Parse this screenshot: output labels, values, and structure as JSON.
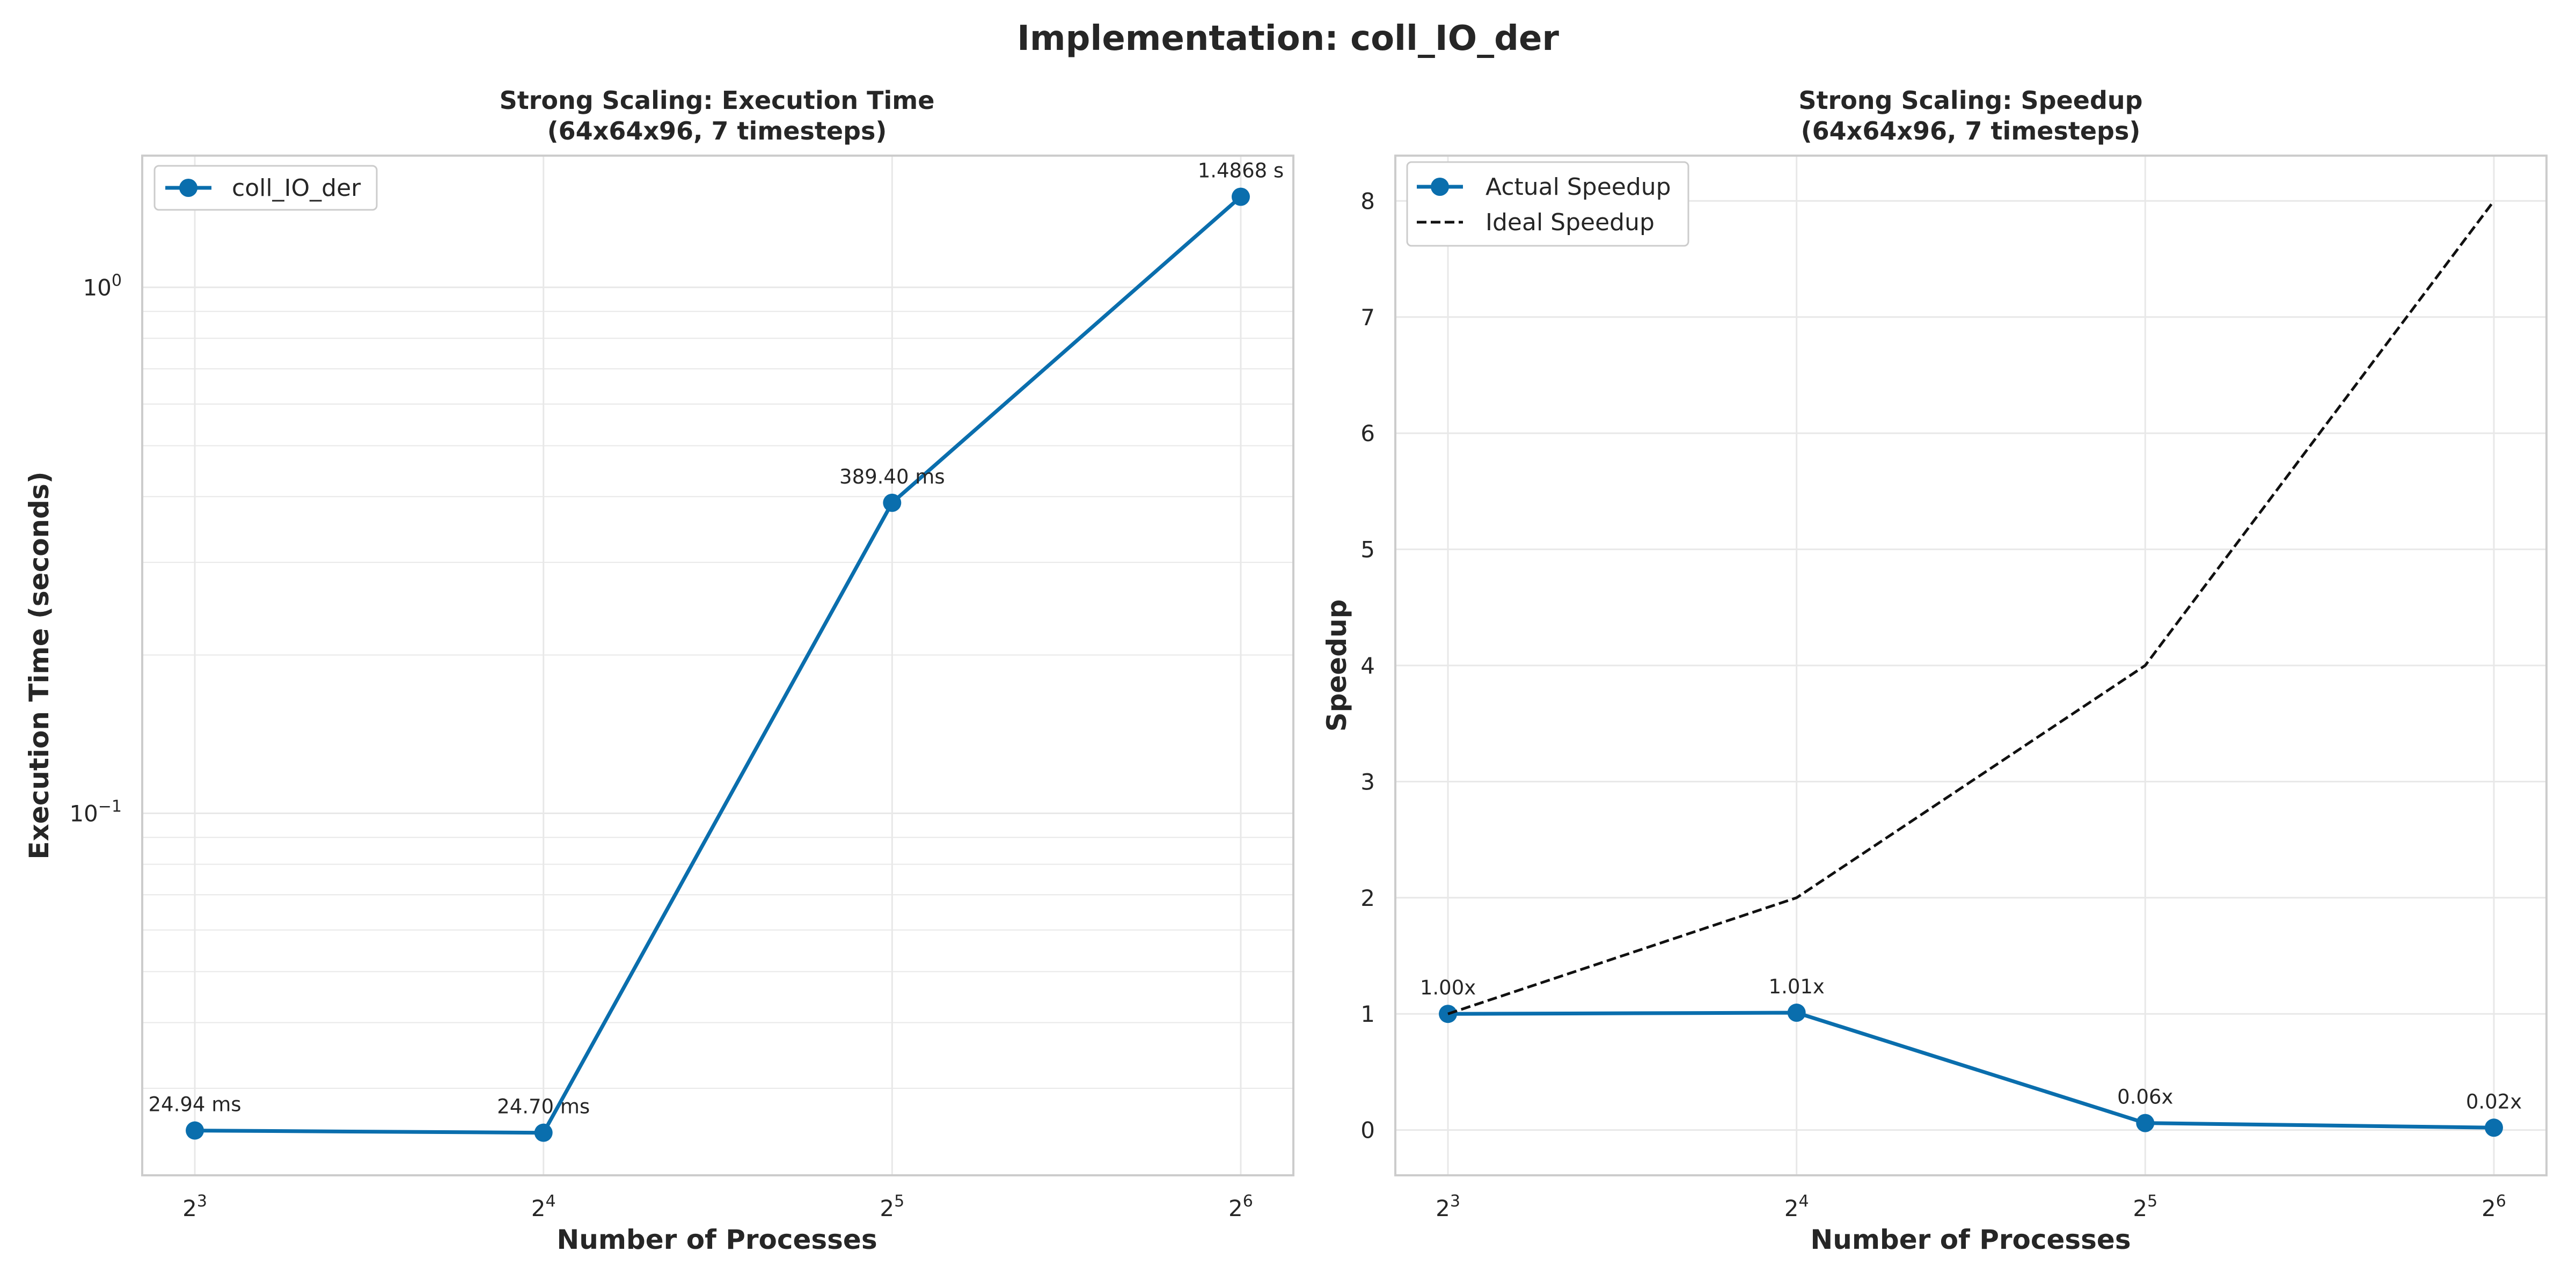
{
  "suptitle": "Implementation: coll_IO_der",
  "colors": {
    "series": "#0a6ead",
    "ideal": "#111111",
    "grid": "#e8e8e8",
    "frame": "#cccccc",
    "text": "#262626"
  },
  "chart_data": [
    {
      "type": "line",
      "title": "Strong Scaling: Execution Time",
      "subtitle": "(64x64x96, 7 timesteps)",
      "xlabel": "Number of Processes",
      "ylabel": "Execution Time (seconds)",
      "xscale": "log2",
      "yscale": "log10",
      "x": [
        8,
        16,
        32,
        64
      ],
      "xtick_labels": [
        {
          "base": "2",
          "exp": "3"
        },
        {
          "base": "2",
          "exp": "4"
        },
        {
          "base": "2",
          "exp": "5"
        },
        {
          "base": "2",
          "exp": "6"
        }
      ],
      "ytick_labels": [
        {
          "base": "10",
          "exp": "0",
          "value": 1
        },
        {
          "base": "10",
          "exp": "−1",
          "value": 0.1
        }
      ],
      "series": [
        {
          "name": "coll_IO_der",
          "values": [
            0.02494,
            0.0247,
            0.3894,
            1.4868
          ],
          "labels": [
            "24.94 ms",
            "24.70 ms",
            "389.40 ms",
            "1.4868 s"
          ]
        }
      ],
      "ylim": [
        0.0205,
        1.78
      ],
      "grid": true,
      "legend": "top-left"
    },
    {
      "type": "line",
      "title": "Strong Scaling: Speedup",
      "subtitle": "(64x64x96, 7 timesteps)",
      "xlabel": "Number of Processes",
      "ylabel": "Speedup",
      "xscale": "log2",
      "x": [
        8,
        16,
        32,
        64
      ],
      "xtick_labels": [
        {
          "base": "2",
          "exp": "3"
        },
        {
          "base": "2",
          "exp": "4"
        },
        {
          "base": "2",
          "exp": "5"
        },
        {
          "base": "2",
          "exp": "6"
        }
      ],
      "yticks": [
        "0",
        "1",
        "2",
        "3",
        "4",
        "5",
        "6",
        "7",
        "8"
      ],
      "series": [
        {
          "name": "Actual Speedup",
          "values": [
            1.0,
            1.01,
            0.06,
            0.02
          ],
          "labels": [
            "1.00x",
            "1.01x",
            "0.06x",
            "0.02x"
          ]
        },
        {
          "name": "Ideal Speedup",
          "values": [
            1,
            2,
            4,
            8
          ],
          "style": "dashed"
        }
      ],
      "ylim": [
        -0.39,
        8.39
      ],
      "grid": true,
      "legend": "top-left"
    }
  ]
}
